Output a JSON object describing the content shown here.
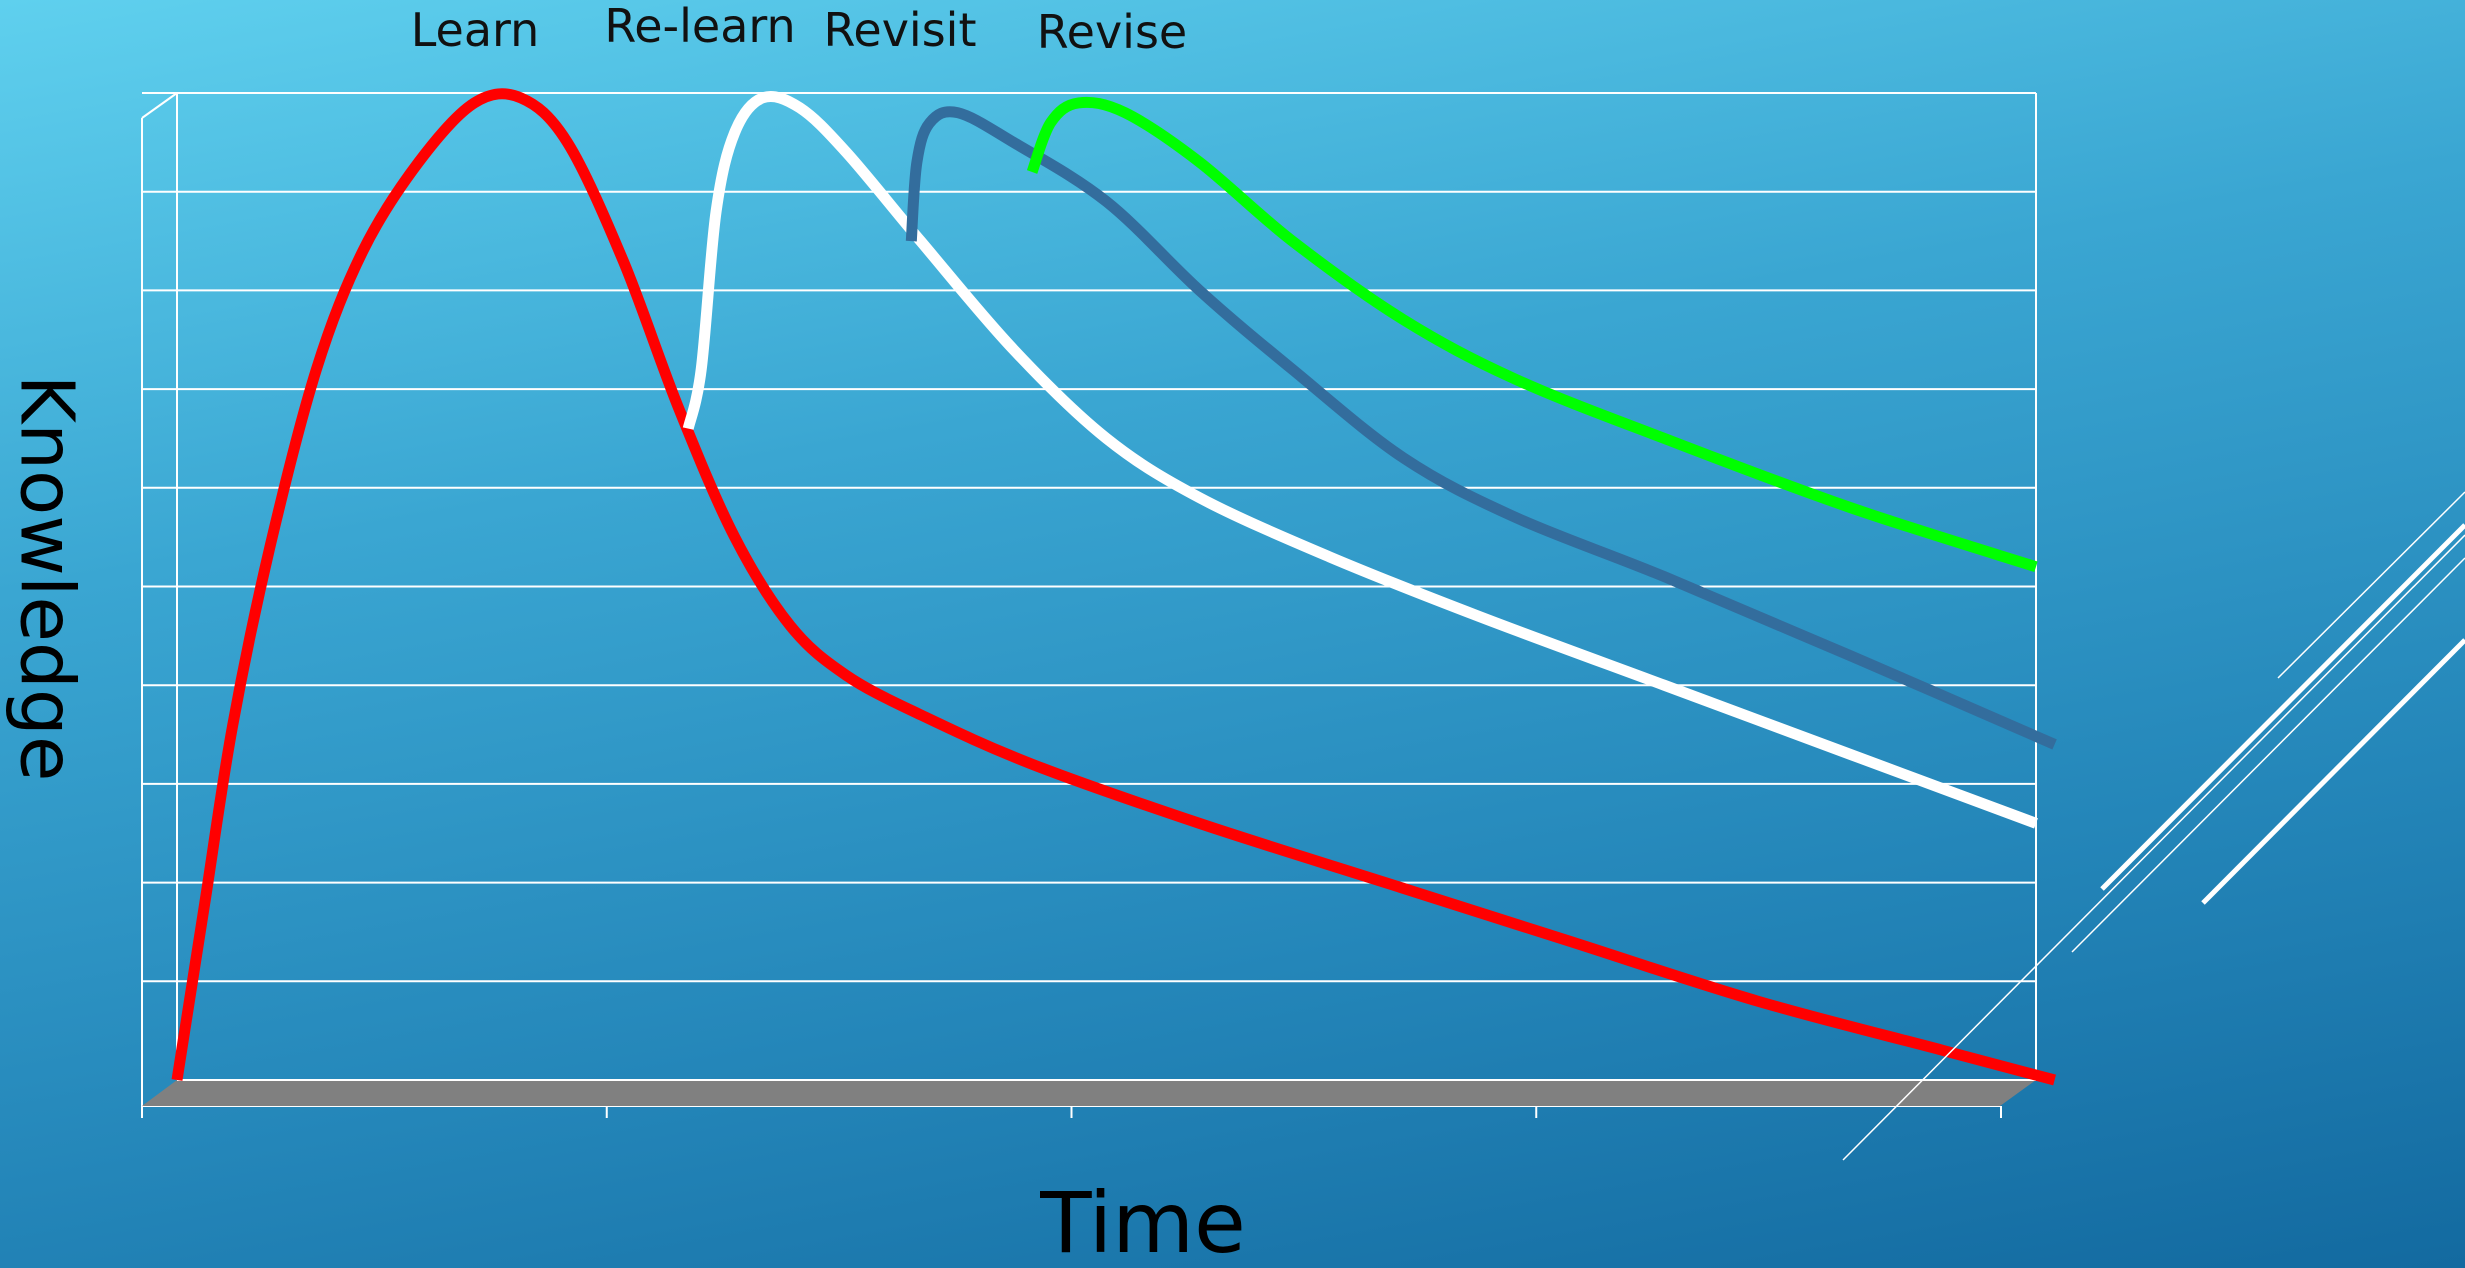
{
  "chart_data": {
    "type": "line",
    "title": "",
    "xlabel": "Time",
    "ylabel": "Knowledge",
    "xlim": [
      0,
      100
    ],
    "ylim": [
      0,
      10
    ],
    "grid": true,
    "y_gridlines": 10,
    "x_ticks": 5,
    "floor_color": "#808080",
    "grid_color": "#ffffff",
    "series": [
      {
        "name": "Learn",
        "color": "#ff0000",
        "points": [
          [
            0,
            0
          ],
          [
            1.5,
            1.8
          ],
          [
            3,
            3.6
          ],
          [
            5,
            5.4
          ],
          [
            7.5,
            7.2
          ],
          [
            10,
            8.4
          ],
          [
            13,
            9.3
          ],
          [
            16,
            9.9
          ],
          [
            18.5,
            9.95
          ],
          [
            21,
            9.5
          ],
          [
            24,
            8.3
          ],
          [
            27,
            6.8
          ],
          [
            30,
            5.5
          ],
          [
            33,
            4.6
          ],
          [
            36,
            4.1
          ],
          [
            40,
            3.7
          ],
          [
            46,
            3.2
          ],
          [
            55,
            2.6
          ],
          [
            65,
            2.0
          ],
          [
            75,
            1.4
          ],
          [
            85,
            0.8
          ],
          [
            95,
            0.3
          ],
          [
            101,
            0
          ]
        ]
      },
      {
        "name": "Re-learn",
        "color": "#ffffff",
        "points": [
          [
            27.5,
            6.6
          ],
          [
            28.2,
            7.2
          ],
          [
            29,
            8.8
          ],
          [
            30,
            9.6
          ],
          [
            31.5,
            9.95
          ],
          [
            33.5,
            9.85
          ],
          [
            36,
            9.4
          ],
          [
            40,
            8.5
          ],
          [
            45,
            7.4
          ],
          [
            50,
            6.5
          ],
          [
            55,
            5.9
          ],
          [
            62,
            5.3
          ],
          [
            70,
            4.7
          ],
          [
            80,
            4.0
          ],
          [
            90,
            3.3
          ],
          [
            100,
            2.6
          ]
        ]
      },
      {
        "name": "Revisit",
        "color": "#336d9d",
        "points": [
          [
            39.5,
            8.5
          ],
          [
            39.8,
            9.3
          ],
          [
            40.5,
            9.7
          ],
          [
            42,
            9.8
          ],
          [
            45,
            9.5
          ],
          [
            50,
            8.9
          ],
          [
            55,
            8.0
          ],
          [
            60,
            7.2
          ],
          [
            66,
            6.3
          ],
          [
            72,
            5.7
          ],
          [
            80,
            5.1
          ],
          [
            90,
            4.3
          ],
          [
            101,
            3.4
          ]
        ]
      },
      {
        "name": "Revise",
        "color": "#00ff00",
        "points": [
          [
            46,
            9.2
          ],
          [
            47,
            9.7
          ],
          [
            48.5,
            9.9
          ],
          [
            51,
            9.8
          ],
          [
            55,
            9.3
          ],
          [
            60,
            8.5
          ],
          [
            66,
            7.7
          ],
          [
            72,
            7.1
          ],
          [
            80,
            6.5
          ],
          [
            90,
            5.8
          ],
          [
            100,
            5.2
          ]
        ]
      }
    ]
  },
  "phase_labels": {
    "learn": "Learn",
    "relearn": "Re-learn",
    "revisit": "Revisit",
    "revise": "Revise"
  },
  "colors": {
    "learn": "#ff0000",
    "relearn": "#ffffff",
    "revisit": "#336d9d",
    "revise": "#00ff00",
    "decor_lines": "#ffffff"
  }
}
